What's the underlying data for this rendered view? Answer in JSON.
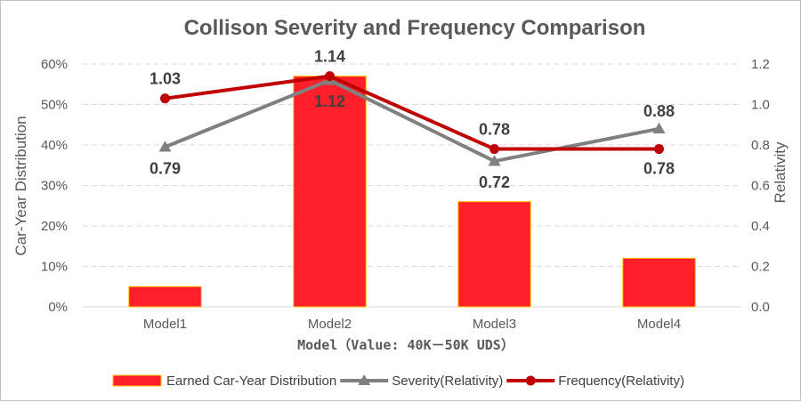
{
  "chart_data": {
    "type": "bar",
    "title": "Collison Severity and Frequency Comparison",
    "xlabel": "Model（Value: 40K－50K UDS）",
    "ylabel": "Car-Year Distribution",
    "y2label": "Relativity",
    "categories": [
      "Model1",
      "Model2",
      "Model3",
      "Model4"
    ],
    "ylim": [
      0,
      0.6
    ],
    "y_ticks": [
      "0%",
      "10%",
      "20%",
      "30%",
      "40%",
      "50%",
      "60%"
    ],
    "y2lim": [
      0,
      1.2
    ],
    "y2_ticks": [
      "0.0",
      "0.2",
      "0.4",
      "0.6",
      "0.8",
      "1.0",
      "1.2"
    ],
    "grid": true,
    "legend_position": "bottom",
    "series": [
      {
        "name": "Earned Car-Year Distribution",
        "type": "bar",
        "axis": "left",
        "values": [
          0.05,
          0.57,
          0.26,
          0.12
        ],
        "color": "#ff1f2b",
        "edge_color": "#ffc000"
      },
      {
        "name": "Severity(Relativity)",
        "type": "line",
        "marker": "triangle",
        "axis": "right",
        "values": [
          0.79,
          1.12,
          0.72,
          0.88
        ],
        "labels": [
          "0.79",
          "1.12",
          "0.72",
          "0.88"
        ],
        "color": "#808080"
      },
      {
        "name": "Frequency(Relativity)",
        "type": "line",
        "marker": "circle",
        "axis": "right",
        "values": [
          1.03,
          1.14,
          0.78,
          0.78
        ],
        "labels": [
          "1.03",
          "1.14",
          "0.78",
          "0.78"
        ],
        "color": "#c00000"
      }
    ]
  }
}
